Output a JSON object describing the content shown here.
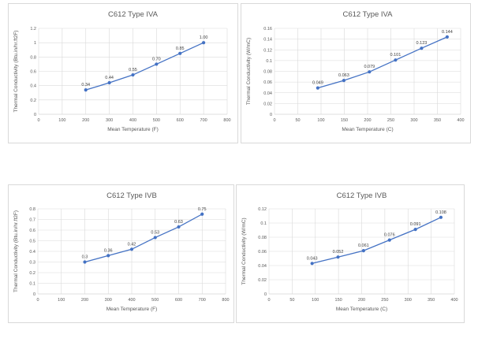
{
  "chart_data": [
    {
      "type": "line",
      "title": "C612 Type IVA",
      "xlabel": "Mean Temperature (F)",
      "ylabel": "Thermal Conductivity (Btu.in/hr.ft2F)",
      "xlim": [
        0,
        800
      ],
      "ylim": [
        0,
        1.2
      ],
      "xticks": [
        "0",
        "100",
        "200",
        "300",
        "400",
        "500",
        "600",
        "700",
        "800"
      ],
      "yticks": [
        "0",
        "0.2",
        "0.4",
        "0.6",
        "0.8",
        "1",
        "1.2"
      ],
      "x": [
        200,
        300,
        400,
        500,
        600,
        700
      ],
      "values": [
        0.34,
        0.44,
        0.55,
        0.7,
        0.85,
        1.0
      ],
      "labels": [
        "0.34",
        "0.44",
        "0.55",
        "0.70",
        "0.85",
        "1.00"
      ],
      "grid": true
    },
    {
      "type": "line",
      "title": "C612 Type IVA",
      "xlabel": "Mean Temperature (C)",
      "ylabel": "Thermal Conductivity (W/mC)",
      "xlim": [
        0,
        400
      ],
      "ylim": [
        0,
        0.16
      ],
      "xticks": [
        "0",
        "50",
        "100",
        "150",
        "200",
        "250",
        "300",
        "350",
        "400"
      ],
      "yticks": [
        "0",
        "0.02",
        "0.04",
        "0.06",
        "0.08",
        "0.1",
        "0.12",
        "0.14",
        "0.16"
      ],
      "x": [
        93,
        149,
        204,
        260,
        316,
        371
      ],
      "values": [
        0.049,
        0.063,
        0.079,
        0.101,
        0.123,
        0.144
      ],
      "labels": [
        "0.049",
        "0.063",
        "0.079",
        "0.101",
        "0.123",
        "0.144"
      ],
      "grid": true
    },
    {
      "type": "line",
      "title": "C612 Type IVB",
      "xlabel": "Mean Temperature (F)",
      "ylabel": "Thermal Conductivity (Btu.in/hr.ft2F)",
      "xlim": [
        0,
        800
      ],
      "ylim": [
        0,
        0.8
      ],
      "xticks": [
        "0",
        "100",
        "200",
        "300",
        "400",
        "500",
        "600",
        "700",
        "800"
      ],
      "yticks": [
        "0",
        "0.1",
        "0.2",
        "0.3",
        "0.4",
        "0.5",
        "0.6",
        "0.7",
        "0.8"
      ],
      "x": [
        200,
        300,
        400,
        500,
        600,
        700
      ],
      "values": [
        0.3,
        0.36,
        0.42,
        0.53,
        0.63,
        0.75
      ],
      "labels": [
        "0.3",
        "0.36",
        "0.42",
        "0.53",
        "0.63",
        "0.75"
      ],
      "grid": true
    },
    {
      "type": "line",
      "title": "C612 Type IVB",
      "xlabel": "Mean Temperature (C)",
      "ylabel": "Thermal Conductivity (W/mC)",
      "xlim": [
        0,
        400
      ],
      "ylim": [
        0,
        0.12
      ],
      "xticks": [
        "0",
        "50",
        "100",
        "150",
        "200",
        "250",
        "300",
        "350",
        "400"
      ],
      "yticks": [
        "0",
        "0.02",
        "0.04",
        "0.06",
        "0.08",
        "0.1",
        "0.12"
      ],
      "x": [
        93,
        149,
        204,
        260,
        316,
        371
      ],
      "values": [
        0.043,
        0.052,
        0.061,
        0.076,
        0.091,
        0.108
      ],
      "labels": [
        "0.043",
        "0.052",
        "0.061",
        "0.076",
        "0.091",
        "0.108"
      ],
      "grid": true
    }
  ],
  "colors": {
    "series": "#4472c4",
    "grid": "#d9d9d9",
    "axis": "#bfbfbf",
    "text": "#595959"
  }
}
